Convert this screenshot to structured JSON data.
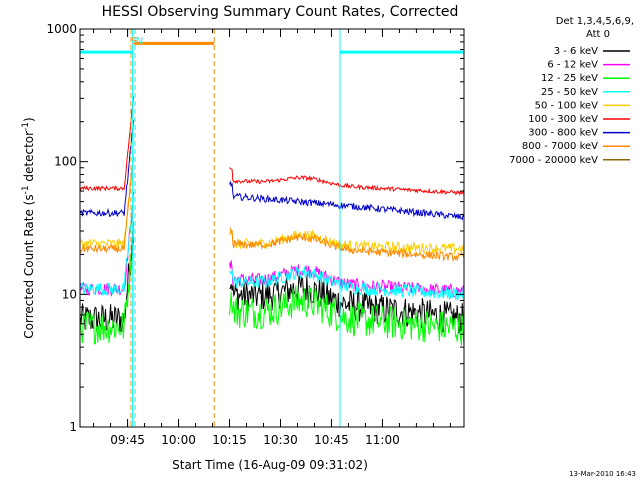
{
  "chart_data": {
    "type": "line",
    "title": "HESSI Observing Summary Count Rates, Corrected",
    "xlabel": "Start Time (16-Aug-09 09:31:02)",
    "ylabel_main": "Corrected Count Rate (s",
    "ylabel_sup1": "-1",
    "ylabel_mid": " detector",
    "ylabel_sup2": "-1",
    "ylabel_end": ")",
    "y_scale": "log",
    "ylim": [
      1,
      1000
    ],
    "xlim_minutes": [
      0,
      113
    ],
    "x_ticks": [
      {
        "label": "09:45",
        "t": 14
      },
      {
        "label": "10:00",
        "t": 29
      },
      {
        "label": "10:15",
        "t": 44
      },
      {
        "label": "10:30",
        "t": 59
      },
      {
        "label": "10:45",
        "t": 74
      },
      {
        "label": "11:00",
        "t": 89
      }
    ],
    "y_ticks": [
      {
        "label": "1",
        "v": 1
      },
      {
        "label": "10",
        "v": 10
      },
      {
        "label": "100",
        "v": 100
      },
      {
        "label": "1000",
        "v": 1000
      }
    ],
    "legend_header": [
      "Det 1,3,4,5,6,9,",
      "Att 0"
    ],
    "legend_placement": "right",
    "series": [
      {
        "name": "3 - 6 keV",
        "color": "#000000",
        "pre": 6.5,
        "post": 10,
        "hump": 1.25,
        "end": 6.5,
        "noise": 0.12
      },
      {
        "name": "6 - 12 keV",
        "color": "#ff00ff",
        "pre": 11,
        "post": 13,
        "hump": 1.25,
        "end": 10.5,
        "noise": 0.05
      },
      {
        "name": "12 - 25 keV",
        "color": "#00ff00",
        "pre": 5.7,
        "post": 7.5,
        "hump": 1.3,
        "end": 5.5,
        "noise": 0.13
      },
      {
        "name": "25 - 50 keV",
        "color": "#00ffff",
        "pre": 11,
        "post": 12.5,
        "hump": 1.25,
        "end": 10,
        "noise": 0.05
      },
      {
        "name": "50 - 100 keV",
        "color": "#ffcc00",
        "pre": 24,
        "post": 24,
        "hump": 1.2,
        "end": 22,
        "noise": 0.04
      },
      {
        "name": "100 - 300 keV",
        "color": "#ff0000",
        "pre": 63,
        "post": 72,
        "hump": 1.12,
        "end": 58,
        "noise": 0.015
      },
      {
        "name": "300 - 800 keV",
        "color": "#0000cc",
        "pre": 41,
        "post": 55,
        "hump": 1.0,
        "end": 38,
        "noise": 0.025
      },
      {
        "name": "800 - 7000 keV",
        "color": "#ff8800",
        "pre": 22,
        "post": 24,
        "hump": 1.2,
        "end": 19,
        "noise": 0.03
      },
      {
        "name": "7000 - 20000 keV",
        "color": "#8b6508",
        "pre": 0,
        "post": 0,
        "hump": 1,
        "end": 0,
        "noise": 0
      }
    ],
    "gaps": {
      "data_end_1": 14.5,
      "data_start_2": 44
    },
    "annotations": [
      {
        "label": "S",
        "t": 16,
        "color": "#ff8800"
      },
      {
        "label": "N",
        "t": 17.5,
        "color": "#00ffff"
      }
    ],
    "top_bars": [
      {
        "t0": 0,
        "t1": 15.5,
        "v": 670,
        "color": "#00ffff"
      },
      {
        "t0": 16,
        "t1": 39.5,
        "v": 780,
        "color": "#ff8800"
      },
      {
        "t0": 76.5,
        "t1": 113,
        "v": 670,
        "color": "#00ffff"
      }
    ],
    "vlines": [
      {
        "t": 15.5,
        "color": "#00ffff",
        "dash": false
      },
      {
        "t": 16.2,
        "color": "#00ffff",
        "dash": true
      },
      {
        "t": 15.0,
        "color": "#ff8800",
        "dash": true
      },
      {
        "t": 39.5,
        "color": "#ff8800",
        "dash": true
      },
      {
        "t": 76.5,
        "color": "#00ffff",
        "dash": false
      },
      {
        "t": 113,
        "color": "#00ffff",
        "dash": true
      }
    ]
  },
  "footer_date": "13-Mar-2010 16:43"
}
